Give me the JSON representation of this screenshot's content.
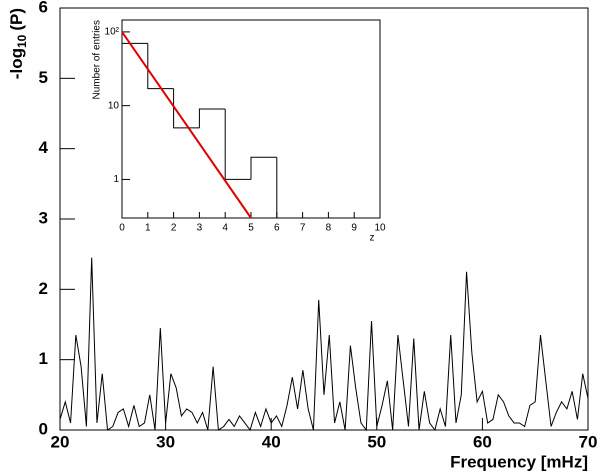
{
  "chart_data": [
    {
      "type": "line",
      "xlabel": "Frequency [mHz]",
      "ylabel": {
        "text": "-log",
        "sub": "10",
        "tail": "(P)"
      },
      "color": "#000000",
      "xlim": [
        20,
        70
      ],
      "ylim": [
        0,
        6
      ],
      "xticks": [
        20,
        30,
        40,
        50,
        60,
        70
      ],
      "yticks": [
        0,
        1,
        2,
        3,
        4,
        5,
        6
      ],
      "x": [
        20,
        20.5,
        21,
        21.5,
        22,
        22.5,
        23,
        23.5,
        24,
        24.5,
        25,
        25.5,
        26,
        26.5,
        27,
        27.5,
        28,
        28.5,
        29,
        29.5,
        30,
        30.5,
        31,
        31.5,
        32,
        32.5,
        33,
        33.5,
        34,
        34.5,
        35,
        35.5,
        36,
        36.5,
        37,
        37.5,
        38,
        38.5,
        39,
        39.5,
        40,
        40.5,
        41,
        41.5,
        42,
        42.5,
        43,
        43.5,
        44,
        44.5,
        45,
        45.5,
        46,
        46.5,
        47,
        47.5,
        48,
        48.5,
        49,
        49.5,
        50,
        50.5,
        51,
        51.5,
        52,
        52.5,
        53,
        53.5,
        54,
        54.5,
        55,
        55.5,
        56,
        56.5,
        57,
        57.5,
        58,
        58.5,
        59,
        59.5,
        60,
        60.5,
        61,
        61.5,
        62,
        62.5,
        63,
        63.5,
        64,
        64.5,
        65,
        65.5,
        66,
        66.5,
        67,
        67.5,
        68,
        68.5,
        69,
        69.5,
        70
      ],
      "values": [
        0.15,
        0.4,
        0.1,
        1.35,
        0.9,
        0.05,
        2.45,
        0.1,
        0.8,
        0.0,
        0.05,
        0.25,
        0.3,
        0.05,
        0.35,
        0.05,
        0.1,
        0.5,
        0.0,
        1.45,
        0.1,
        0.8,
        0.6,
        0.2,
        0.3,
        0.25,
        0.1,
        0.25,
        0.0,
        0.9,
        0.0,
        0.05,
        0.15,
        0.05,
        0.2,
        0.1,
        0.0,
        0.25,
        0.05,
        0.3,
        0.1,
        0.2,
        0.05,
        0.35,
        0.75,
        0.3,
        0.85,
        0.3,
        0.0,
        1.85,
        0.5,
        1.35,
        0.1,
        0.4,
        0.0,
        1.2,
        0.6,
        0.1,
        0.0,
        1.55,
        0.05,
        0.35,
        0.7,
        0.0,
        1.35,
        0.7,
        0.05,
        1.3,
        0.0,
        0.55,
        0.1,
        0.0,
        0.3,
        0.05,
        1.35,
        0.1,
        0.5,
        2.25,
        1.1,
        0.4,
        0.55,
        0.1,
        0.15,
        0.5,
        0.4,
        0.2,
        0.1,
        0.1,
        0.05,
        0.35,
        0.4,
        1.35,
        0.7,
        0.05,
        0.25,
        0.4,
        0.3,
        0.55,
        0.15,
        0.8,
        0.45
      ]
    },
    {
      "type": "histogram",
      "xlabel": "z",
      "ylabel": "Number of entries",
      "log_y": true,
      "color": "#000000",
      "xlim": [
        0,
        10
      ],
      "ylim": [
        0.3,
        145
      ],
      "xticks": [
        0,
        1,
        2,
        3,
        4,
        5,
        6,
        7,
        8,
        9,
        10
      ],
      "yticks": [
        1,
        10,
        {
          "value": 100,
          "label": "10²"
        }
      ],
      "bins": [
        0,
        1,
        2,
        3,
        4,
        5,
        6,
        7,
        8,
        9,
        10
      ],
      "counts": [
        70,
        17,
        5,
        9,
        1,
        2,
        0,
        0,
        0,
        0
      ],
      "fit": {
        "color": "#e00000",
        "x": [
          0,
          5
        ],
        "values": [
          100,
          0.3
        ]
      }
    }
  ]
}
